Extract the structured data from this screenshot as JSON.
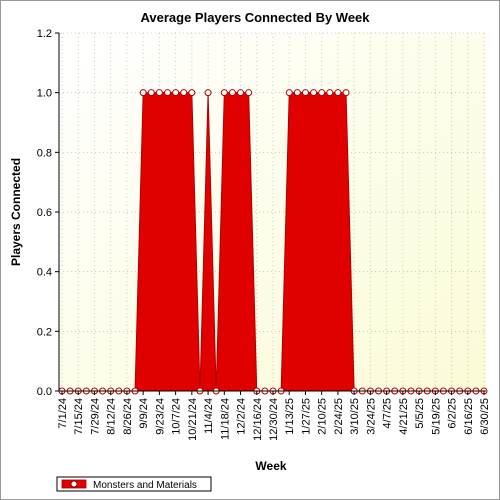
{
  "chart_data": {
    "type": "area",
    "title": "Average Players Connected By Week",
    "xlabel": "Week",
    "ylabel": "Players Connected",
    "ylim": [
      0,
      1.2
    ],
    "yticks": [
      "0.0",
      "0.2",
      "0.4",
      "0.6",
      "0.8",
      "1.0",
      "1.2"
    ],
    "grid": true,
    "legend_position": "bottom-left",
    "x_tick_labels": [
      "7/1/24",
      "7/15/24",
      "7/29/24",
      "8/12/24",
      "8/26/24",
      "9/9/24",
      "9/23/24",
      "10/7/24",
      "10/21/24",
      "11/4/24",
      "11/18/24",
      "12/2/24",
      "12/16/24",
      "12/30/24",
      "1/13/25",
      "1/27/25",
      "2/10/25",
      "2/24/25",
      "3/10/25",
      "3/24/25",
      "4/7/25",
      "4/21/25",
      "5/5/25",
      "5/19/25",
      "6/2/25",
      "6/16/25",
      "6/30/25"
    ],
    "x": [
      "7/1/24",
      "7/8/24",
      "7/15/24",
      "7/22/24",
      "7/29/24",
      "8/5/24",
      "8/12/24",
      "8/19/24",
      "8/26/24",
      "9/2/24",
      "9/9/24",
      "9/16/24",
      "9/23/24",
      "9/30/24",
      "10/7/24",
      "10/14/24",
      "10/21/24",
      "10/28/24",
      "11/4/24",
      "11/11/24",
      "11/18/24",
      "11/25/24",
      "12/2/24",
      "12/9/24",
      "12/16/24",
      "12/23/24",
      "12/30/24",
      "1/6/25",
      "1/13/25",
      "1/20/25",
      "1/27/25",
      "2/3/25",
      "2/10/25",
      "2/17/25",
      "2/24/25",
      "3/3/25",
      "3/10/25",
      "3/17/25",
      "3/24/25",
      "3/31/25",
      "4/7/25",
      "4/14/25",
      "4/21/25",
      "4/28/25",
      "5/5/25",
      "5/12/25",
      "5/19/25",
      "5/26/25",
      "6/2/25",
      "6/9/25",
      "6/16/25",
      "6/23/25",
      "6/30/25"
    ],
    "series": [
      {
        "name": "Monsters and Materials",
        "color": "#e00000",
        "values": [
          0,
          0,
          0,
          0,
          0,
          0,
          0,
          0,
          0,
          0,
          1,
          1,
          1,
          1,
          1,
          1,
          1,
          0,
          1,
          0,
          1,
          1,
          1,
          1,
          0,
          0,
          0,
          0,
          1,
          1,
          1,
          1,
          1,
          1,
          1,
          1,
          0,
          0,
          0,
          0,
          0,
          0,
          0,
          0,
          0,
          0,
          0,
          0,
          0,
          0,
          0,
          0,
          0
        ]
      }
    ]
  }
}
